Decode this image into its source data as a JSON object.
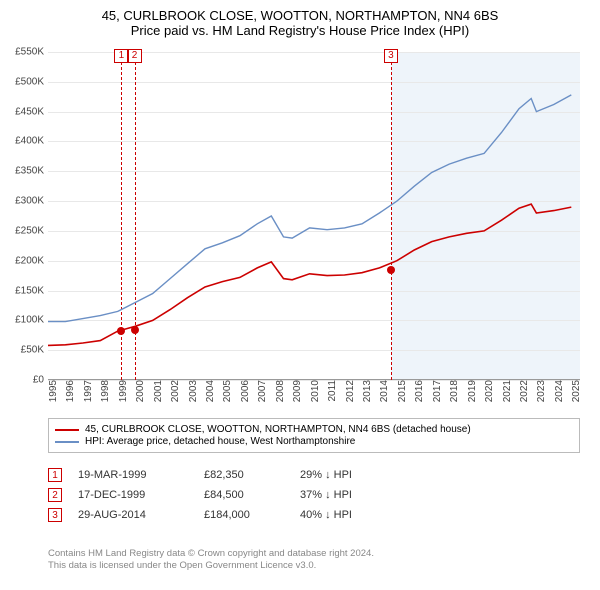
{
  "title_line1": "45, CURLBROOK CLOSE, WOOTTON, NORTHAMPTON, NN4 6BS",
  "title_line2": "Price paid vs. HM Land Registry's House Price Index (HPI)",
  "chart": {
    "type": "line",
    "background_color": "#ffffff",
    "shade_color": "#eef4fa",
    "grid_color": "#e8e8e8",
    "ylim": [
      0,
      550000
    ],
    "ytick_step": 50000,
    "ytick_prefix": "£",
    "ytick_suffix": "K",
    "ytick_divisor": 1000,
    "x_start_year": 1995,
    "x_end_year": 2025.5,
    "xticks": [
      1995,
      1996,
      1997,
      1998,
      1999,
      2000,
      2001,
      2002,
      2003,
      2004,
      2005,
      2006,
      2007,
      2008,
      2009,
      2010,
      2011,
      2012,
      2013,
      2014,
      2015,
      2016,
      2017,
      2018,
      2019,
      2020,
      2021,
      2022,
      2023,
      2024,
      2025
    ],
    "xtick_fontsize": 10,
    "ytick_fontsize": 10,
    "forecast_start_year": 2014.66,
    "series": [
      {
        "name": "HPI: Average price, detached house, West Northamptonshire",
        "color": "#6a8fc5",
        "width": 1.4,
        "points": [
          [
            1995,
            98000
          ],
          [
            1996,
            98000
          ],
          [
            1997,
            103000
          ],
          [
            1998,
            108000
          ],
          [
            1999,
            115000
          ],
          [
            2000,
            130000
          ],
          [
            2001,
            145000
          ],
          [
            2002,
            170000
          ],
          [
            2003,
            195000
          ],
          [
            2004,
            220000
          ],
          [
            2005,
            230000
          ],
          [
            2006,
            242000
          ],
          [
            2007,
            262000
          ],
          [
            2007.8,
            275000
          ],
          [
            2008.5,
            240000
          ],
          [
            2009,
            238000
          ],
          [
            2010,
            255000
          ],
          [
            2011,
            252000
          ],
          [
            2012,
            255000
          ],
          [
            2013,
            262000
          ],
          [
            2014,
            280000
          ],
          [
            2015,
            300000
          ],
          [
            2016,
            325000
          ],
          [
            2017,
            348000
          ],
          [
            2018,
            362000
          ],
          [
            2019,
            372000
          ],
          [
            2020,
            380000
          ],
          [
            2021,
            415000
          ],
          [
            2022,
            455000
          ],
          [
            2022.7,
            472000
          ],
          [
            2023,
            450000
          ],
          [
            2024,
            462000
          ],
          [
            2025,
            478000
          ]
        ]
      },
      {
        "name": "45, CURLBROOK CLOSE, WOOTTON, NORTHAMPTON, NN4 6BS (detached house)",
        "color": "#cc0000",
        "width": 1.6,
        "points": [
          [
            1995,
            58000
          ],
          [
            1996,
            59000
          ],
          [
            1997,
            62000
          ],
          [
            1998,
            66000
          ],
          [
            1999,
            82000
          ],
          [
            2000,
            90000
          ],
          [
            2001,
            100000
          ],
          [
            2002,
            118000
          ],
          [
            2003,
            138000
          ],
          [
            2004,
            156000
          ],
          [
            2005,
            165000
          ],
          [
            2006,
            172000
          ],
          [
            2007,
            188000
          ],
          [
            2007.8,
            198000
          ],
          [
            2008.5,
            170000
          ],
          [
            2009,
            168000
          ],
          [
            2010,
            178000
          ],
          [
            2011,
            175000
          ],
          [
            2012,
            176000
          ],
          [
            2013,
            180000
          ],
          [
            2014,
            188000
          ],
          [
            2015,
            200000
          ],
          [
            2016,
            218000
          ],
          [
            2017,
            232000
          ],
          [
            2018,
            240000
          ],
          [
            2019,
            246000
          ],
          [
            2020,
            250000
          ],
          [
            2021,
            268000
          ],
          [
            2022,
            288000
          ],
          [
            2022.7,
            295000
          ],
          [
            2023,
            280000
          ],
          [
            2024,
            284000
          ],
          [
            2025,
            290000
          ]
        ]
      }
    ],
    "markers": [
      {
        "n": "1",
        "year": 1999.21,
        "price": 82350
      },
      {
        "n": "2",
        "year": 1999.96,
        "price": 84500
      },
      {
        "n": "3",
        "year": 2014.66,
        "price": 184000
      }
    ]
  },
  "legend": [
    {
      "color": "#cc0000",
      "label": "45, CURLBROOK CLOSE, WOOTTON, NORTHAMPTON, NN4 6BS (detached house)"
    },
    {
      "color": "#6a8fc5",
      "label": "HPI: Average price, detached house, West Northamptonshire"
    }
  ],
  "sales": [
    {
      "n": "1",
      "date": "19-MAR-1999",
      "price": "£82,350",
      "diff": "29% ↓ HPI"
    },
    {
      "n": "2",
      "date": "17-DEC-1999",
      "price": "£84,500",
      "diff": "37% ↓ HPI"
    },
    {
      "n": "3",
      "date": "29-AUG-2014",
      "price": "£184,000",
      "diff": "40% ↓ HPI"
    }
  ],
  "attribution_line1": "Contains HM Land Registry data © Crown copyright and database right 2024.",
  "attribution_line2": "This data is licensed under the Open Government Licence v3.0."
}
